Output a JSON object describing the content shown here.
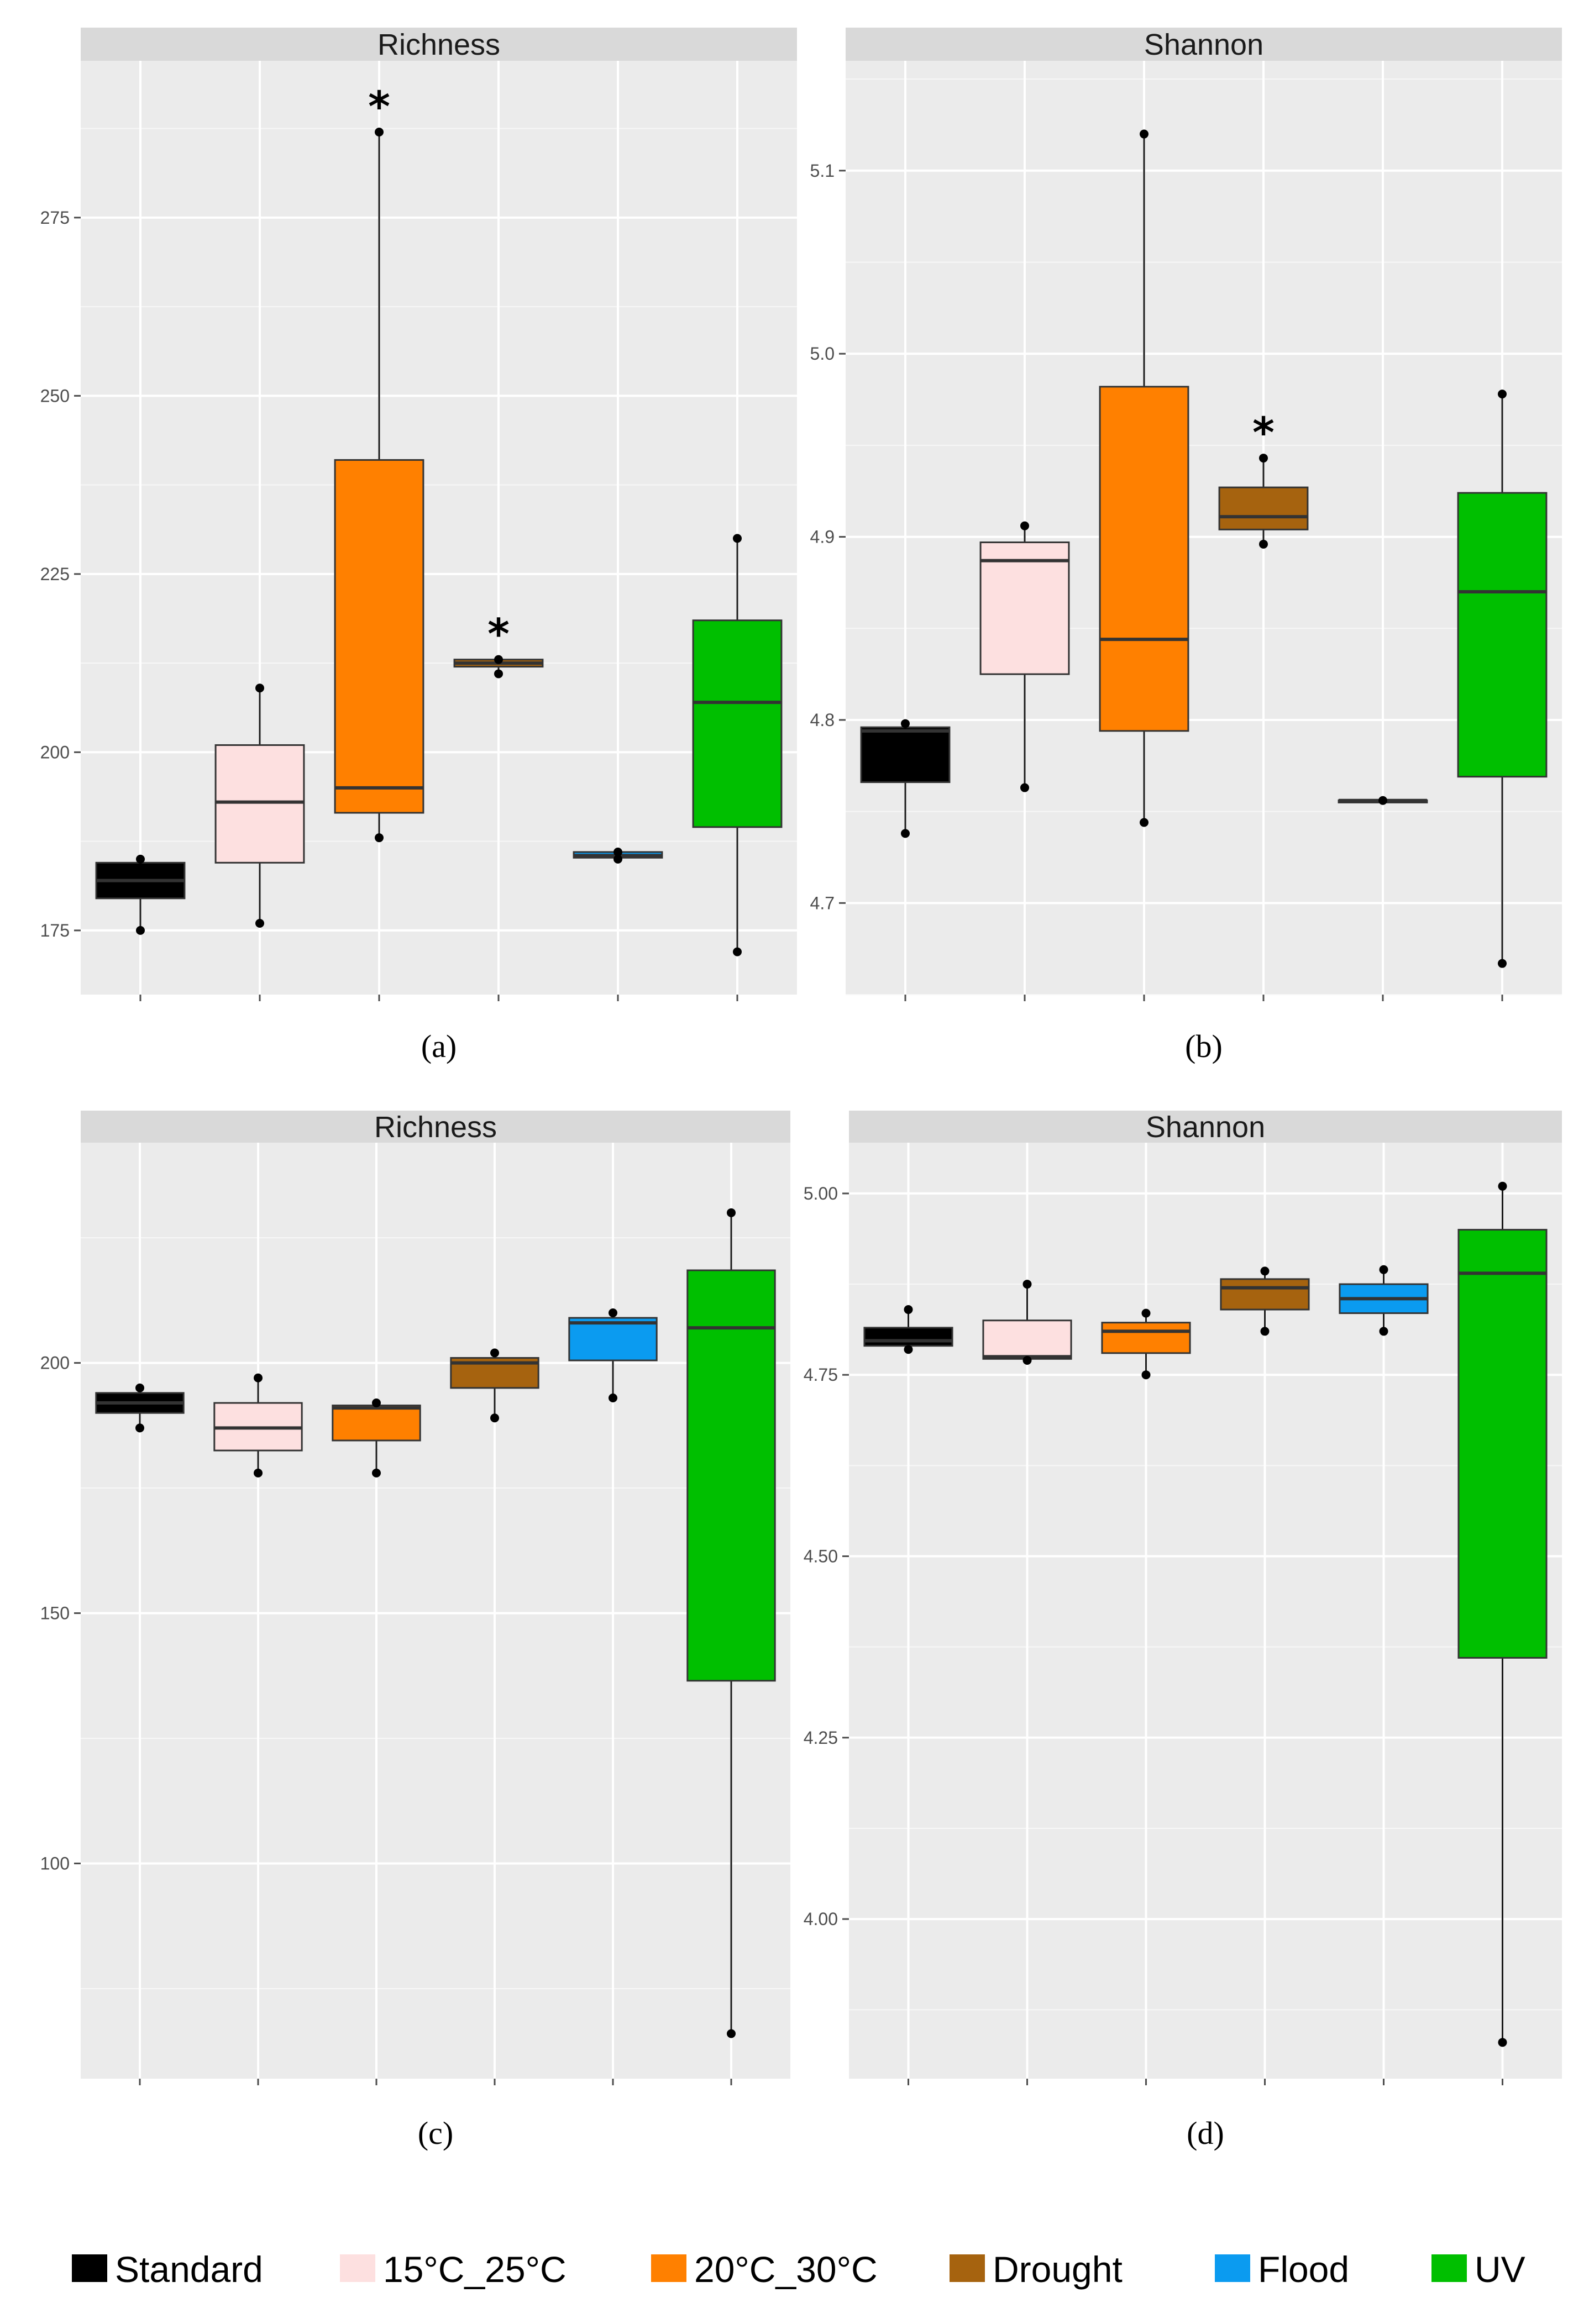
{
  "colors": {
    "Standard": "#000000",
    "15°C_25°C": "#fde0e0",
    "20°C_30°C": "#ff8000",
    "Drought": "#a6630f",
    "Flood": "#0b9bf0",
    "UV": "#00bf00"
  },
  "legend": {
    "items": [
      {
        "label": "Standard",
        "color": "#000000"
      },
      {
        "label": "15°C_25°C",
        "color": "#fde0e0"
      },
      {
        "label": "20°C_30°C",
        "color": "#ff8000"
      },
      {
        "label": "Drought",
        "color": "#a6630f"
      },
      {
        "label": "Flood",
        "color": "#0b9bf0"
      },
      {
        "label": "UV",
        "color": "#00bf00"
      }
    ]
  },
  "chart_data": [
    {
      "type": "box",
      "panel": "a",
      "title": "Richness",
      "caption": "(a)",
      "ylim": [
        166,
        297
      ],
      "yticks": [
        175,
        200,
        225,
        250,
        275
      ],
      "ytick_labels": [
        "175",
        "200",
        "225",
        "250",
        "275"
      ],
      "boxes": [
        {
          "group": "Standard",
          "min": 175,
          "q1": 179.5,
          "median": 182,
          "q3": 184.5,
          "max": 185,
          "points": [
            175,
            185
          ]
        },
        {
          "group": "15°C_25°C",
          "min": 176,
          "q1": 184.5,
          "median": 193,
          "q3": 201,
          "max": 209,
          "points": [
            176,
            209
          ]
        },
        {
          "group": "20°C_30°C",
          "min": 188,
          "q1": 191.5,
          "median": 195,
          "q3": 241,
          "max": 287,
          "points": [
            188,
            287
          ],
          "star": true
        },
        {
          "group": "Drought",
          "min": 211,
          "q1": 212,
          "median": 212.5,
          "q3": 213,
          "max": 213,
          "points": [
            211,
            213
          ],
          "star": true
        },
        {
          "group": "Flood",
          "min": 185,
          "q1": 185.2,
          "median": 185.5,
          "q3": 186,
          "max": 186,
          "points": [
            185,
            186
          ]
        },
        {
          "group": "UV",
          "min": 172,
          "q1": 189.5,
          "median": 207,
          "q3": 218.5,
          "max": 230,
          "points": [
            172,
            230
          ]
        }
      ]
    },
    {
      "type": "box",
      "panel": "b",
      "title": "Shannon",
      "caption": "(b)",
      "ylim": [
        4.65,
        5.16
      ],
      "yticks": [
        4.7,
        4.8,
        4.9,
        5.0,
        5.1
      ],
      "ytick_labels": [
        "4.7",
        "4.8",
        "4.9",
        "5.0",
        "5.1"
      ],
      "boxes": [
        {
          "group": "Standard",
          "min": 4.738,
          "q1": 4.766,
          "median": 4.794,
          "q3": 4.796,
          "max": 4.798,
          "points": [
            4.738,
            4.798
          ]
        },
        {
          "group": "15°C_25°C",
          "min": 4.763,
          "q1": 4.825,
          "median": 4.887,
          "q3": 4.897,
          "max": 4.906,
          "points": [
            4.763,
            4.906
          ]
        },
        {
          "group": "20°C_30°C",
          "min": 4.744,
          "q1": 4.794,
          "median": 4.844,
          "q3": 4.982,
          "max": 5.12,
          "points": [
            4.744,
            5.12
          ]
        },
        {
          "group": "Drought",
          "min": 4.896,
          "q1": 4.904,
          "median": 4.911,
          "q3": 4.927,
          "max": 4.943,
          "points": [
            4.896,
            4.943
          ],
          "star": true
        },
        {
          "group": "Flood",
          "min": 4.755,
          "q1": 4.755,
          "median": 4.756,
          "q3": 4.756,
          "max": 4.757,
          "points": [
            4.756
          ]
        },
        {
          "group": "UV",
          "min": 4.667,
          "q1": 4.769,
          "median": 4.87,
          "q3": 4.924,
          "max": 4.978,
          "points": [
            4.667,
            4.978
          ]
        }
      ]
    },
    {
      "type": "box",
      "panel": "c",
      "title": "Richness",
      "caption": "(c)",
      "ylim": [
        57,
        244
      ],
      "yticks": [
        100,
        150,
        200
      ],
      "ytick_labels": [
        "100",
        "150",
        "200"
      ],
      "boxes": [
        {
          "group": "Standard",
          "min": 187,
          "q1": 190,
          "median": 192,
          "q3": 194,
          "max": 195,
          "points": [
            187,
            195
          ]
        },
        {
          "group": "15°C_25°C",
          "min": 178,
          "q1": 182.5,
          "median": 187,
          "q3": 192,
          "max": 197,
          "points": [
            178,
            197
          ]
        },
        {
          "group": "20°C_30°C",
          "min": 178,
          "q1": 184.5,
          "median": 191,
          "q3": 191.5,
          "max": 192,
          "points": [
            178,
            192
          ]
        },
        {
          "group": "Drought",
          "min": 189,
          "q1": 195,
          "median": 200,
          "q3": 201,
          "max": 202,
          "points": [
            189,
            202
          ]
        },
        {
          "group": "Flood",
          "min": 193,
          "q1": 200.5,
          "median": 208,
          "q3": 209,
          "max": 210,
          "points": [
            193,
            210
          ]
        },
        {
          "group": "UV",
          "min": 66,
          "q1": 136.5,
          "median": 207,
          "q3": 218.5,
          "max": 230,
          "points": [
            66,
            230
          ]
        }
      ]
    },
    {
      "type": "box",
      "panel": "d",
      "title": "Shannon",
      "caption": "(d)",
      "ylim": [
        3.78,
        5.07
      ],
      "yticks": [
        4.0,
        4.25,
        4.5,
        4.75,
        5.0
      ],
      "ytick_labels": [
        "4.00",
        "4.25",
        "4.50",
        "4.75",
        "5.00"
      ],
      "boxes": [
        {
          "group": "Standard",
          "min": 4.785,
          "q1": 4.79,
          "median": 4.797,
          "q3": 4.815,
          "max": 4.84,
          "points": [
            4.785,
            4.84
          ]
        },
        {
          "group": "15°C_25°C",
          "min": 4.77,
          "q1": 4.772,
          "median": 4.775,
          "q3": 4.825,
          "max": 4.875,
          "points": [
            4.77,
            4.875
          ]
        },
        {
          "group": "20°C_30°C",
          "min": 4.75,
          "q1": 4.78,
          "median": 4.81,
          "q3": 4.822,
          "max": 4.835,
          "points": [
            4.75,
            4.835
          ]
        },
        {
          "group": "Drought",
          "min": 4.81,
          "q1": 4.84,
          "median": 4.87,
          "q3": 4.882,
          "max": 4.893,
          "points": [
            4.81,
            4.893
          ]
        },
        {
          "group": "Flood",
          "min": 4.81,
          "q1": 4.835,
          "median": 4.855,
          "q3": 4.875,
          "max": 4.895,
          "points": [
            4.81,
            4.895
          ]
        },
        {
          "group": "UV",
          "min": 3.83,
          "q1": 4.36,
          "median": 4.89,
          "q3": 4.95,
          "max": 5.01,
          "points": [
            3.83,
            5.01
          ]
        }
      ]
    }
  ]
}
